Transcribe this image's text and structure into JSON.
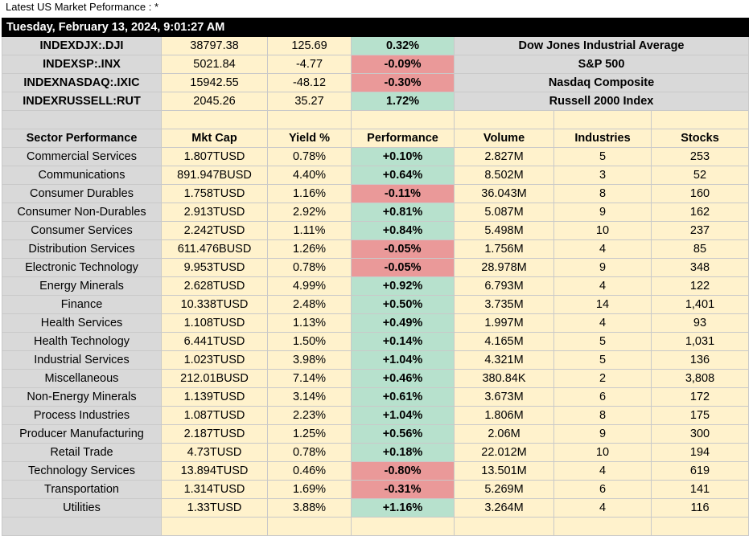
{
  "caption": "Latest US Market Peformance : *",
  "datetime": "Tuesday, February 13, 2024, 9:01:27 AM",
  "indices": [
    {
      "symbol": "INDEXDJX:.DJI",
      "price": "38797.38",
      "change": "125.69",
      "pct": "0.32%",
      "direction": "up",
      "name": "Dow Jones Industrial Average"
    },
    {
      "symbol": "INDEXSP:.INX",
      "price": "5021.84",
      "change": "-4.77",
      "pct": "-0.09%",
      "direction": "down",
      "name": "S&P 500"
    },
    {
      "symbol": "INDEXNASDAQ:.IXIC",
      "price": "15942.55",
      "change": "-48.12",
      "pct": "-0.30%",
      "direction": "down",
      "name": "Nasdaq Composite"
    },
    {
      "symbol": "INDEXRUSSELL:RUT",
      "price": "2045.26",
      "change": "35.27",
      "pct": "1.72%",
      "direction": "up",
      "name": "Russell 2000 Index"
    }
  ],
  "sector_headers": [
    "Sector Performance",
    "Mkt Cap",
    "Yield %",
    "Performance",
    "Volume",
    "Industries",
    "Stocks"
  ],
  "sectors": [
    {
      "name": "Commercial Services",
      "mktcap": "1.807TUSD",
      "yield": "0.78%",
      "perf": "+0.10%",
      "direction": "up",
      "volume": "2.827M",
      "industries": "5",
      "stocks": "253"
    },
    {
      "name": "Communications",
      "mktcap": "891.947BUSD",
      "yield": "4.40%",
      "perf": "+0.64%",
      "direction": "up",
      "volume": "8.502M",
      "industries": "3",
      "stocks": "52"
    },
    {
      "name": "Consumer Durables",
      "mktcap": "1.758TUSD",
      "yield": "1.16%",
      "perf": "-0.11%",
      "direction": "down",
      "volume": "36.043M",
      "industries": "8",
      "stocks": "160"
    },
    {
      "name": "Consumer Non-Durables",
      "mktcap": "2.913TUSD",
      "yield": "2.92%",
      "perf": "+0.81%",
      "direction": "up",
      "volume": "5.087M",
      "industries": "9",
      "stocks": "162"
    },
    {
      "name": "Consumer Services",
      "mktcap": "2.242TUSD",
      "yield": "1.11%",
      "perf": "+0.84%",
      "direction": "up",
      "volume": "5.498M",
      "industries": "10",
      "stocks": "237"
    },
    {
      "name": "Distribution Services",
      "mktcap": "611.476BUSD",
      "yield": "1.26%",
      "perf": "-0.05%",
      "direction": "down",
      "volume": "1.756M",
      "industries": "4",
      "stocks": "85"
    },
    {
      "name": "Electronic Technology",
      "mktcap": "9.953TUSD",
      "yield": "0.78%",
      "perf": "-0.05%",
      "direction": "down",
      "volume": "28.978M",
      "industries": "9",
      "stocks": "348"
    },
    {
      "name": "Energy Minerals",
      "mktcap": "2.628TUSD",
      "yield": "4.99%",
      "perf": "+0.92%",
      "direction": "up",
      "volume": "6.793M",
      "industries": "4",
      "stocks": "122"
    },
    {
      "name": "Finance",
      "mktcap": "10.338TUSD",
      "yield": "2.48%",
      "perf": "+0.50%",
      "direction": "up",
      "volume": "3.735M",
      "industries": "14",
      "stocks": "1,401"
    },
    {
      "name": "Health Services",
      "mktcap": "1.108TUSD",
      "yield": "1.13%",
      "perf": "+0.49%",
      "direction": "up",
      "volume": "1.997M",
      "industries": "4",
      "stocks": "93"
    },
    {
      "name": "Health Technology",
      "mktcap": "6.441TUSD",
      "yield": "1.50%",
      "perf": "+0.14%",
      "direction": "up",
      "volume": "4.165M",
      "industries": "5",
      "stocks": "1,031"
    },
    {
      "name": "Industrial Services",
      "mktcap": "1.023TUSD",
      "yield": "3.98%",
      "perf": "+1.04%",
      "direction": "up",
      "volume": "4.321M",
      "industries": "5",
      "stocks": "136"
    },
    {
      "name": "Miscellaneous",
      "mktcap": "212.01BUSD",
      "yield": "7.14%",
      "perf": "+0.46%",
      "direction": "up",
      "volume": "380.84K",
      "industries": "2",
      "stocks": "3,808"
    },
    {
      "name": "Non-Energy Minerals",
      "mktcap": "1.139TUSD",
      "yield": "3.14%",
      "perf": "+0.61%",
      "direction": "up",
      "volume": "3.673M",
      "industries": "6",
      "stocks": "172"
    },
    {
      "name": "Process Industries",
      "mktcap": "1.087TUSD",
      "yield": "2.23%",
      "perf": "+1.04%",
      "direction": "up",
      "volume": "1.806M",
      "industries": "8",
      "stocks": "175"
    },
    {
      "name": "Producer Manufacturing",
      "mktcap": "2.187TUSD",
      "yield": "1.25%",
      "perf": "+0.56%",
      "direction": "up",
      "volume": "2.06M",
      "industries": "9",
      "stocks": "300"
    },
    {
      "name": "Retail Trade",
      "mktcap": "4.73TUSD",
      "yield": "0.78%",
      "perf": "+0.18%",
      "direction": "up",
      "volume": "22.012M",
      "industries": "10",
      "stocks": "194"
    },
    {
      "name": "Technology Services",
      "mktcap": "13.894TUSD",
      "yield": "0.46%",
      "perf": "-0.80%",
      "direction": "down",
      "volume": "13.501M",
      "industries": "4",
      "stocks": "619"
    },
    {
      "name": "Transportation",
      "mktcap": "1.314TUSD",
      "yield": "1.69%",
      "perf": "-0.31%",
      "direction": "down",
      "volume": "5.269M",
      "industries": "6",
      "stocks": "141"
    },
    {
      "name": "Utilities",
      "mktcap": "1.33TUSD",
      "yield": "3.88%",
      "perf": "+1.16%",
      "direction": "up",
      "volume": "3.264M",
      "industries": "4",
      "stocks": "116"
    }
  ],
  "colors": {
    "up": "#b7e1cd",
    "down": "#ea9999",
    "gray": "#d9d9d9",
    "cream": "#fff2cc",
    "header_bar": "#000000"
  }
}
